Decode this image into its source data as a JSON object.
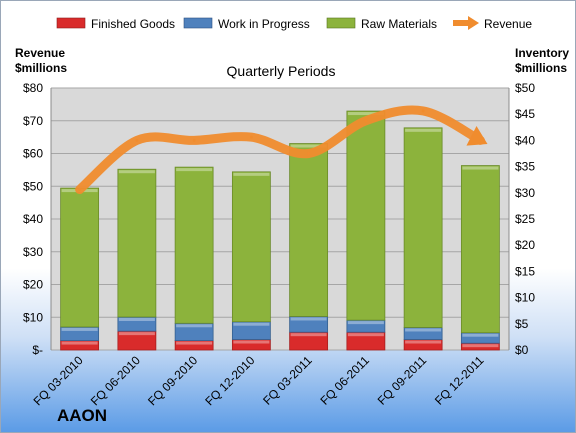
{
  "company": "AAON",
  "chart_data": {
    "type": "bar",
    "stacked": true,
    "title": "Quarterly Periods",
    "categories": [
      "FQ 03-2010",
      "FQ 06-2010",
      "FQ 09-2010",
      "FQ 12-2010",
      "FQ 03-2011",
      "FQ 06-2011",
      "FQ 09-2011",
      "FQ 12-2011"
    ],
    "left_axis": {
      "label_line1": "Revenue",
      "label_line2": "$millions",
      "ylim": [
        0,
        80
      ],
      "ticks": [
        "$-",
        "$10",
        "$20",
        "$30",
        "$40",
        "$50",
        "$60",
        "$70",
        "$80"
      ]
    },
    "right_axis": {
      "label_line1": "Inventory",
      "label_line2": "$millions",
      "ylim": [
        0,
        50
      ],
      "ticks": [
        "$0",
        "$5",
        "$10",
        "$15",
        "$20",
        "$25",
        "$30",
        "$35",
        "$40",
        "$45",
        "$50"
      ]
    },
    "series": [
      {
        "name": "Finished Goods",
        "axis": "right",
        "color": "#d92b2b",
        "values": [
          1.8,
          3.6,
          1.8,
          2.0,
          3.4,
          3.4,
          2.0,
          1.3
        ]
      },
      {
        "name": "Work in Progress",
        "axis": "right",
        "color": "#4f81bd",
        "values": [
          2.6,
          2.7,
          3.3,
          3.4,
          3.0,
          2.3,
          2.3,
          2.0
        ]
      },
      {
        "name": "Raw Materials",
        "axis": "right",
        "color": "#8cb33c",
        "values": [
          26.5,
          28.2,
          29.8,
          28.6,
          33.0,
          39.9,
          38.1,
          31.9
        ]
      },
      {
        "name": "Revenue",
        "axis": "left",
        "type": "line",
        "color": "#f08c2e",
        "values": [
          49,
          64,
          64,
          65,
          60,
          70,
          73,
          64
        ]
      }
    ],
    "grid": true,
    "legend_position": "top"
  }
}
